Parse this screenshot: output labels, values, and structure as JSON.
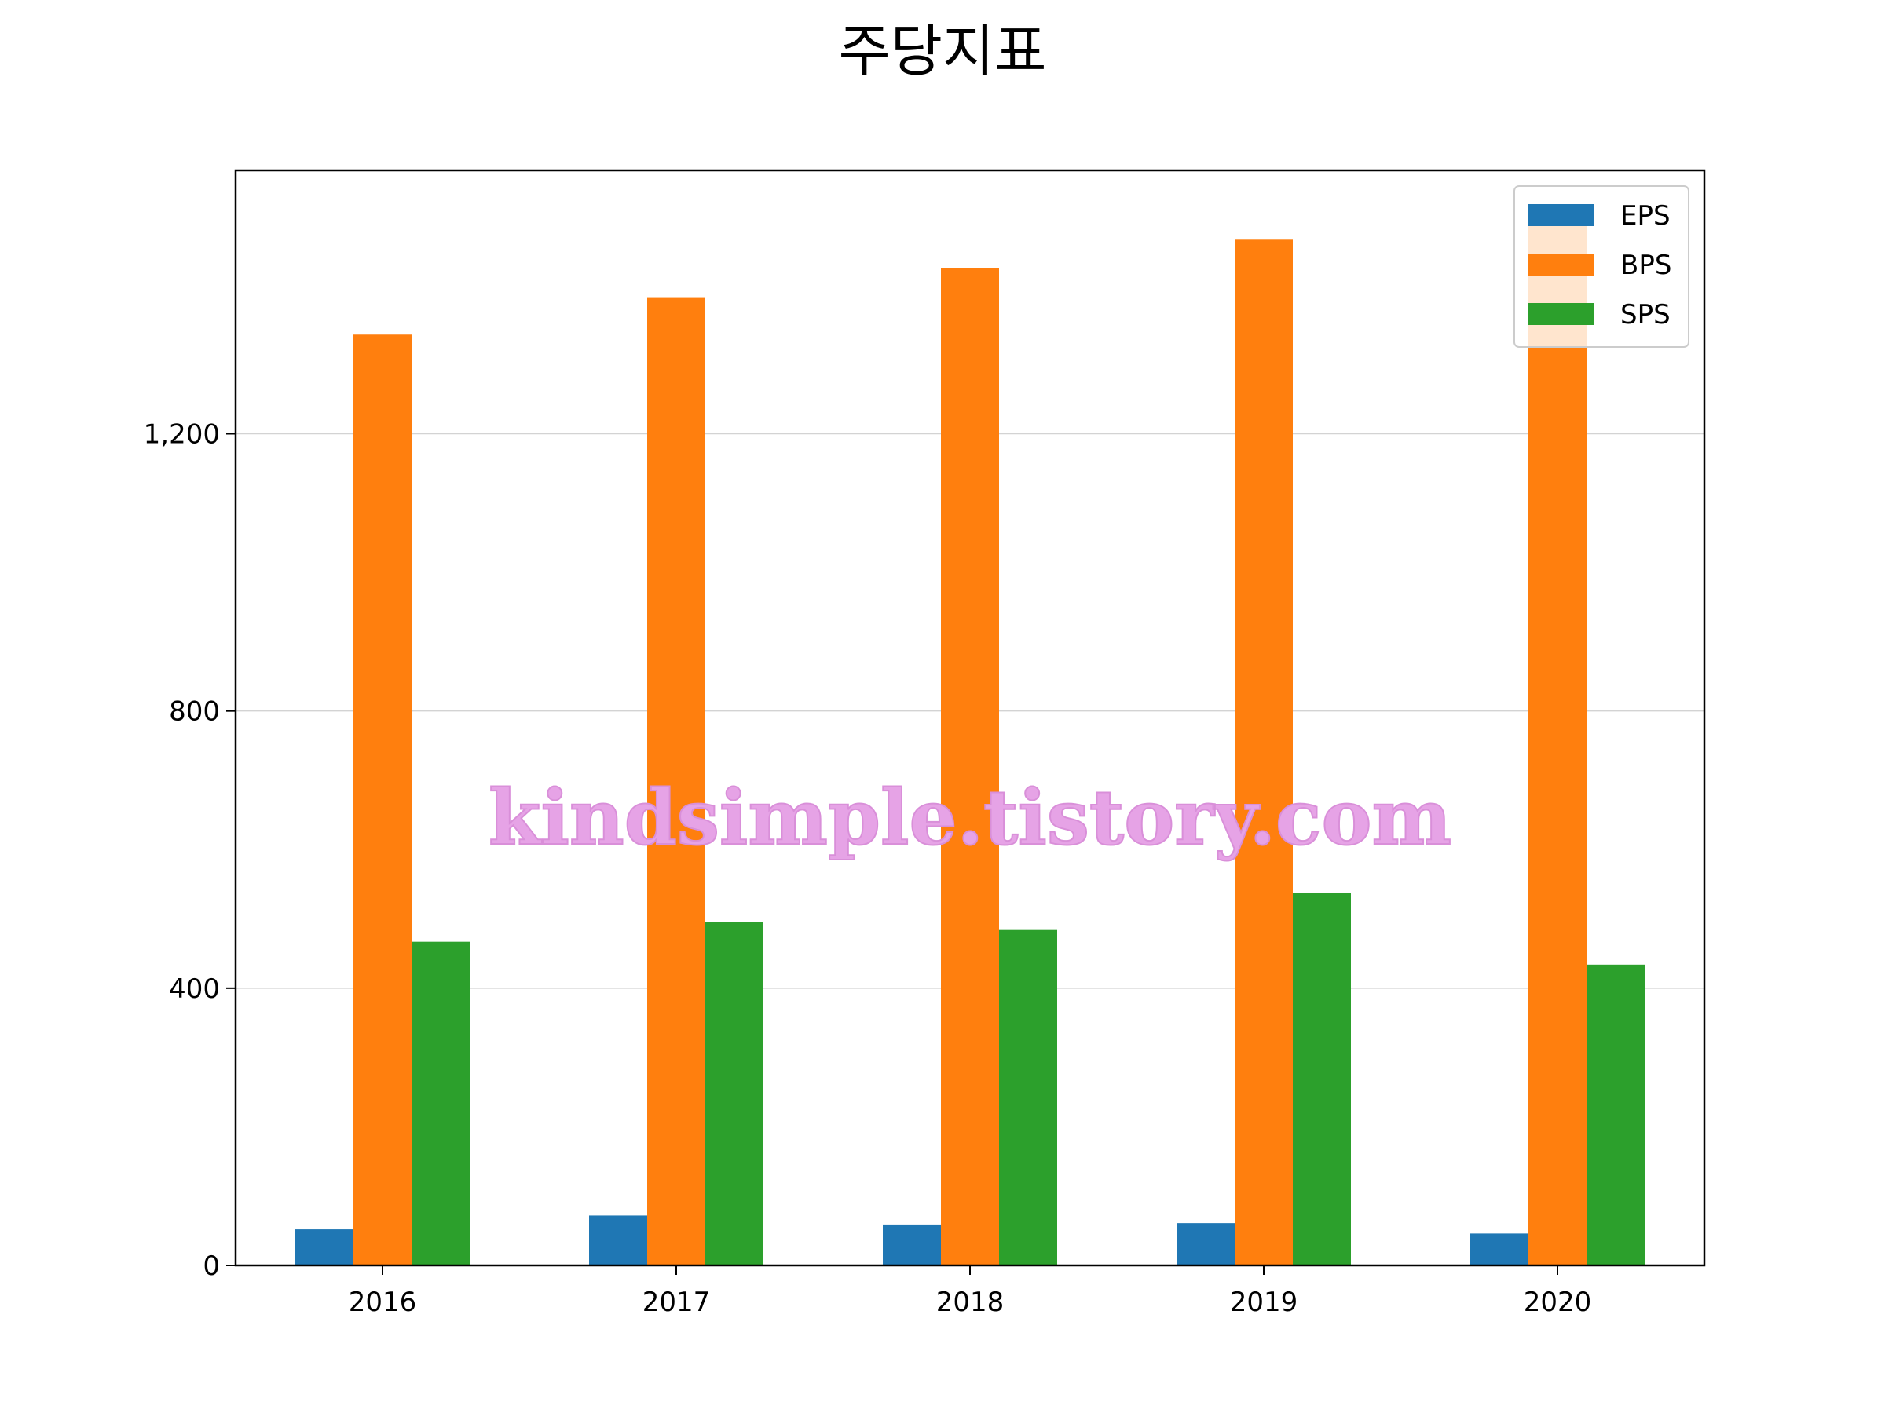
{
  "chart_data": {
    "type": "bar",
    "title": "주당지표",
    "xlabel": "",
    "ylabel": "",
    "categories": [
      "2016",
      "2017",
      "2018",
      "2019",
      "2020"
    ],
    "series": [
      {
        "name": "EPS",
        "color": "#1f77b4",
        "values": [
          52,
          72,
          59,
          61,
          46
        ]
      },
      {
        "name": "BPS",
        "color": "#ff7f0e",
        "values": [
          1343,
          1397,
          1439,
          1480,
          1505
        ]
      },
      {
        "name": "SPS",
        "color": "#2ca02c",
        "values": [
          467,
          495,
          484,
          538,
          434
        ]
      }
    ],
    "yticks": [
      0,
      400,
      800,
      1200
    ],
    "ytick_labels": [
      "0",
      "400",
      "800",
      "1,200"
    ],
    "ylim": [
      0,
      1580
    ],
    "grid": "horizontal",
    "legend_position": "top-right",
    "watermark": "kindsimple.tistory.com"
  }
}
